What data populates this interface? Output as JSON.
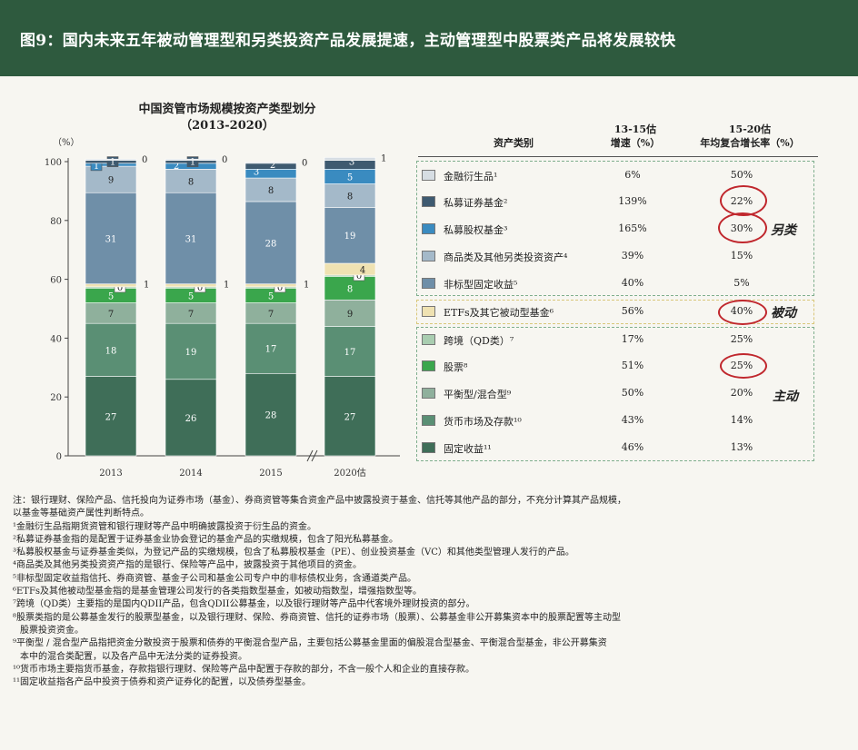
{
  "header": {
    "title": "图9：国内未来五年被动管理型和另类投资产品发展提速，主动管理型中股票类产品将发展较快"
  },
  "chart_data": {
    "type": "bar",
    "title": "中国资管市场规模按资产类型划分",
    "subtitle": "（2013-2020）",
    "ylabel": "（%）",
    "ylim": [
      0,
      100
    ],
    "yticks": [
      "0",
      "20",
      "40",
      "60",
      "80",
      "100"
    ],
    "categories": [
      "2013",
      "2014",
      "2015",
      "2020估"
    ],
    "series": [
      {
        "name": "固定收益",
        "color": "#3f6e58",
        "values": [
          27,
          26,
          28,
          27
        ],
        "labels": [
          "27",
          "26",
          "28",
          "27"
        ]
      },
      {
        "name": "货币市场及存款",
        "color": "#5a8f74",
        "values": [
          18,
          19,
          17,
          17
        ],
        "labels": [
          "18",
          "19",
          "17",
          "17"
        ]
      },
      {
        "name": "平衡型/混合型",
        "color": "#8fb09c",
        "values": [
          7,
          7,
          7,
          9
        ],
        "labels": [
          "7",
          "7",
          "7",
          "9"
        ]
      },
      {
        "name": "股票",
        "color": "#3aa64c",
        "values": [
          5,
          5,
          5,
          8
        ],
        "labels": [
          "5",
          "5",
          "5",
          "8"
        ]
      },
      {
        "name": "跨境（QD类）",
        "color": "#a9cdb0",
        "values": [
          0.4,
          0.4,
          0.4,
          0.4
        ],
        "labels": [
          "0",
          "0",
          "0",
          "0"
        ]
      },
      {
        "name": "ETFs及其它被动型基金",
        "color": "#efe2b2",
        "values": [
          1,
          1,
          1,
          4
        ],
        "labels": [
          "1",
          "1",
          "1",
          "4"
        ]
      },
      {
        "name": "非标型固定收益",
        "color": "#6f8fa8",
        "values": [
          31,
          31,
          28,
          19
        ],
        "labels": [
          "31",
          "31",
          "28",
          "19"
        ]
      },
      {
        "name": "商品类及其他另类投资资产",
        "color": "#a4b9c9",
        "values": [
          9,
          8,
          8,
          8
        ],
        "labels": [
          "9",
          "8",
          "8",
          "8"
        ]
      },
      {
        "name": "私募股权基金",
        "color": "#3a8bc0",
        "values": [
          1,
          2,
          3,
          5
        ],
        "labels": [
          "1",
          "2",
          "3",
          "5"
        ]
      },
      {
        "name": "私募证券基金",
        "color": "#3e5a70",
        "values": [
          1,
          1,
          2,
          3
        ],
        "labels": [
          "1",
          "1",
          "2",
          "3"
        ]
      },
      {
        "name": "金融衍生品",
        "color": "#d6dde3",
        "values": [
          0.4,
          0.4,
          0.4,
          1
        ],
        "labels": [
          "0",
          "0",
          "0",
          "1"
        ]
      }
    ]
  },
  "table": {
    "col_category": "资产类别",
    "col_growth1": "13-15估",
    "col_growth2": "增速（%）",
    "col_cagr1": "15-20估",
    "col_cagr2": "年均复合增长率（%）",
    "rows": [
      {
        "name": "金融衍生品¹",
        "color": "#d6dde3",
        "g1315": "6%",
        "cagr": "50%"
      },
      {
        "name": "私募证券基金²",
        "color": "#3e5a70",
        "g1315": "139%",
        "cagr": "22%"
      },
      {
        "name": "私募股权基金³",
        "color": "#3a8bc0",
        "g1315": "165%",
        "cagr": "30%"
      },
      {
        "name": "商品类及其他另类投资资产⁴",
        "color": "#a4b9c9",
        "g1315": "39%",
        "cagr": "15%"
      },
      {
        "name": "非标型固定收益⁵",
        "color": "#6f8fa8",
        "g1315": "40%",
        "cagr": "5%"
      },
      {
        "name": "ETFs及其它被动型基金⁶",
        "color": "#efe2b2",
        "g1315": "56%",
        "cagr": "40%"
      },
      {
        "name": "跨境（QD类）⁷",
        "color": "#a9cdb0",
        "g1315": "17%",
        "cagr": "25%"
      },
      {
        "name": "股票⁸",
        "color": "#3aa64c",
        "g1315": "51%",
        "cagr": "25%"
      },
      {
        "name": "平衡型/混合型⁹",
        "color": "#8fb09c",
        "g1315": "50%",
        "cagr": "20%"
      },
      {
        "name": "货币市场及存款¹⁰",
        "color": "#5a8f74",
        "g1315": "43%",
        "cagr": "14%"
      },
      {
        "name": "固定收益¹¹",
        "color": "#3f6e58",
        "g1315": "46%",
        "cagr": "13%"
      }
    ],
    "groups": {
      "alt": "另类",
      "passive": "被动",
      "active": "主动"
    }
  },
  "notes": [
    "注：银行理财、保险产品、信托投向为证券市场（基金）、券商资管等集合资金产品中披露投资于基金、信托等其他产品的部分，不充分计算其产品规模，",
    "以基金等基础资产属性判断特点。",
    "¹金融衍生品指期货资管和银行理财等产品中明确披露投资于衍生品的资金。",
    "²私募证券基金指的是配置于证券基金业协会登记的基金产品的实缴规模，包含了阳光私募基金。",
    "³私募股权基金与证券基金类似，为登记产品的实缴规模，包含了私募股权基金（PE）、创业投资基金（VC）和其他类型管理人发行的产品。",
    "⁴商品类及其他另类投资资产指的是银行、保险等产品中，披露投资于其他项目的资金。",
    "⁵非标型固定收益指信托、券商资管、基金子公司和基金公司专户中的非标债权业务，含通道类产品。",
    "⁶ETFs及其他被动型基金指的是基金管理公司发行的各类指数型基金，如被动指数型，增强指数型等。",
    "⁷跨境（QD类）主要指的是国内QDII产品，包含QDII公募基金，以及银行理财等产品中代客境外理财投资的部分。",
    "⁸股票类指的是公募基金发行的股票型基金，以及银行理财、保险、券商资管、信托的证券市场（股票）、公募基金非公开募集资本中的股票配置等主动型",
    "股票投资资金。",
    "⁹平衡型 / 混合型产品指把资金分散投资于股票和债券的平衡混合型产品，主要包括公募基金里面的偏股混合型基金、平衡混合型基金，非公开募集资",
    "本中的混合类配置，以及各产品中无法分类的证券投资。",
    "¹⁰货币市场主要指货币基金，存款指银行理财、保险等产品中配置于存款的部分，不含一般个人和企业的直接存款。",
    "¹¹固定收益指各产品中投资于债券和资产证券化的配置，以及债券型基金。"
  ]
}
